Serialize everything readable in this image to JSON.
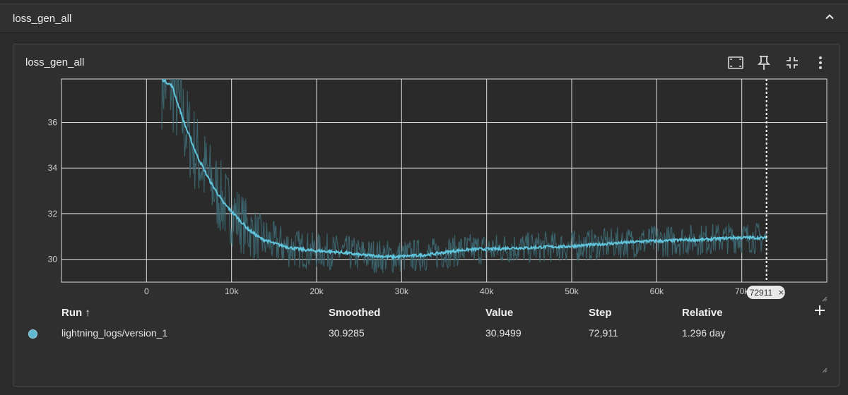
{
  "section": {
    "title": "loss_gen_all",
    "collapse_icon": "chevron-up-icon"
  },
  "card": {
    "title": "loss_gen_all",
    "tools": [
      "fit-domain-icon",
      "pin-icon",
      "collapse-card-icon",
      "more-vert-icon"
    ]
  },
  "chart_data": {
    "type": "line",
    "title": "",
    "xlabel": "",
    "ylabel": "",
    "x_ticks": [
      "0",
      "10k",
      "20k",
      "30k",
      "40k",
      "50k",
      "60k",
      "70k"
    ],
    "y_ticks": [
      "30",
      "32",
      "34",
      "36"
    ],
    "xlim": [
      -10000,
      80000
    ],
    "ylim": [
      29.0,
      37.9
    ],
    "grid": true,
    "cursor_step": 72911,
    "cursor_label": "72911",
    "series": [
      {
        "name": "lightning_logs/version_1",
        "color": "#5fc4dc",
        "smoothed": [
          [
            1800,
            37.9
          ],
          [
            3000,
            37.6
          ],
          [
            4500,
            35.9
          ],
          [
            6000,
            34.5
          ],
          [
            7500,
            33.4
          ],
          [
            9000,
            32.5
          ],
          [
            10500,
            31.9
          ],
          [
            12000,
            31.3
          ],
          [
            13500,
            30.9
          ],
          [
            15000,
            30.7
          ],
          [
            17000,
            30.5
          ],
          [
            19000,
            30.4
          ],
          [
            21000,
            30.35
          ],
          [
            23000,
            30.3
          ],
          [
            25000,
            30.2
          ],
          [
            27000,
            30.15
          ],
          [
            29000,
            30.1
          ],
          [
            31000,
            30.15
          ],
          [
            33000,
            30.2
          ],
          [
            35000,
            30.3
          ],
          [
            37000,
            30.4
          ],
          [
            39000,
            30.45
          ],
          [
            41000,
            30.45
          ],
          [
            43000,
            30.5
          ],
          [
            45000,
            30.5
          ],
          [
            47000,
            30.55
          ],
          [
            49000,
            30.55
          ],
          [
            51000,
            30.6
          ],
          [
            53000,
            30.65
          ],
          [
            55000,
            30.7
          ],
          [
            57000,
            30.75
          ],
          [
            59000,
            30.8
          ],
          [
            61000,
            30.8
          ],
          [
            63000,
            30.85
          ],
          [
            65000,
            30.85
          ],
          [
            67000,
            30.9
          ],
          [
            69000,
            30.95
          ],
          [
            71000,
            30.95
          ],
          [
            72911,
            30.93
          ]
        ],
        "noise_amplitude": [
          [
            1800,
            2.2
          ],
          [
            8000,
            1.8
          ],
          [
            14000,
            1.0
          ],
          [
            20000,
            0.8
          ],
          [
            40000,
            0.7
          ],
          [
            72911,
            0.7
          ]
        ]
      }
    ]
  },
  "table": {
    "headers": {
      "run": "Run ↑",
      "smoothed": "Smoothed",
      "value": "Value",
      "step": "Step",
      "relative": "Relative"
    },
    "rows": [
      {
        "run": "lightning_logs/version_1",
        "smoothed": "30.9285",
        "value": "30.9499",
        "step": "72,911",
        "relative": "1.296 day"
      }
    ]
  }
}
